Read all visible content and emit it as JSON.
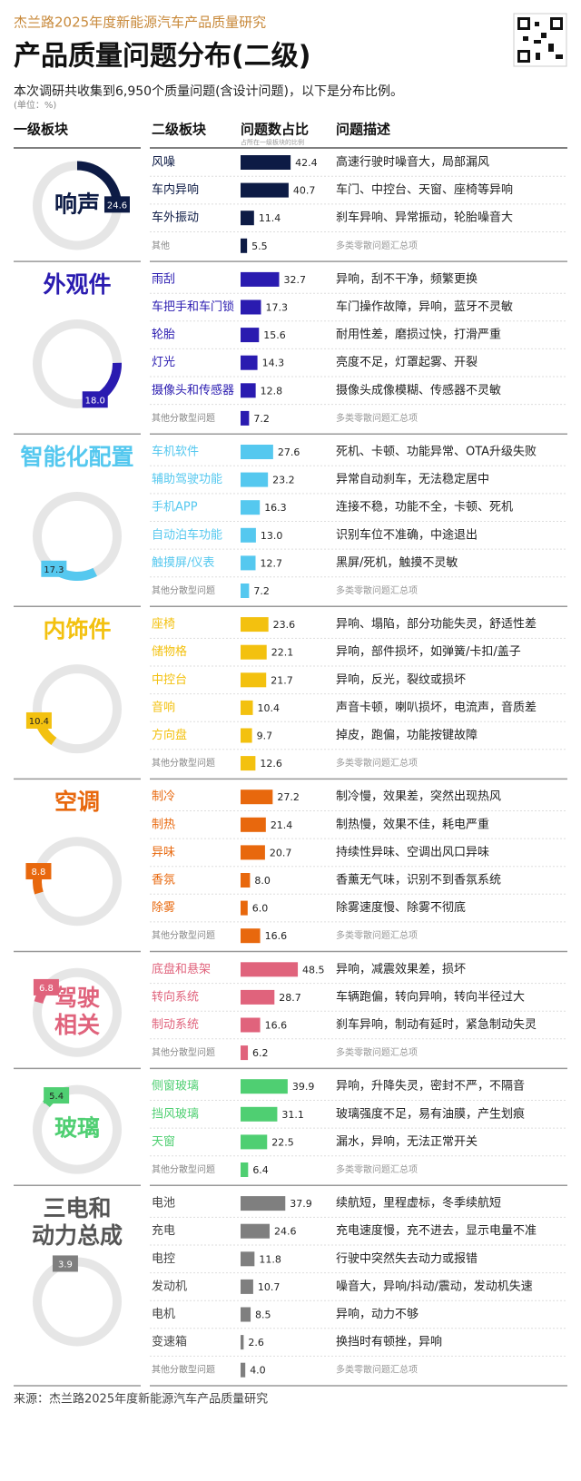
{
  "header": {
    "brand": "杰兰路2025年度新能源汽车产品质量研究",
    "title": "产品质量问题分布(二级)",
    "subtitle": "本次调研共收集到6,950个质量问题(含设计问题)，以下是分布比例。",
    "unit": "(单位：%)"
  },
  "columns": {
    "level1": "一级板块",
    "level2": "二级板块",
    "share": "问题数占比",
    "share_note": "占所在一级板块的比例",
    "desc": "问题描述"
  },
  "sections": [
    {
      "name": [
        "响声"
      ],
      "share": 24.6,
      "color": "#0d1b45",
      "rows": [
        {
          "name": "风噪",
          "value": 42.4,
          "desc": "高速行驶时噪音大，局部漏风"
        },
        {
          "name": "车内异响",
          "value": 40.7,
          "desc": "车门、中控台、天窗、座椅等异响"
        },
        {
          "name": "车外振动",
          "value": 11.4,
          "desc": "刹车异响、异常振动，轮胎噪音大"
        },
        {
          "name": "其他",
          "value": 5.5,
          "desc": "多类零散问题汇总项"
        }
      ]
    },
    {
      "name": [
        "外观件"
      ],
      "share": 18,
      "share_label": "18.0",
      "color": "#2a1bb0",
      "rows": [
        {
          "name": "雨刮",
          "value": 32.7,
          "desc": "异响，刮不干净，频繁更换"
        },
        {
          "name": "车把手和车门锁",
          "value": 17.3,
          "desc": "车门操作故障，异响，蓝牙不灵敏"
        },
        {
          "name": "轮胎",
          "value": 15.6,
          "desc": "耐用性差，磨损过快，打滑严重"
        },
        {
          "name": "灯光",
          "value": 14.3,
          "desc": "亮度不足，灯罩起雾、开裂"
        },
        {
          "name": "摄像头和传感器",
          "value": 12.8,
          "desc": "摄像头成像模糊、传感器不灵敏"
        },
        {
          "name": "其他分散型问题",
          "value": 7.2,
          "desc": "多类零散问题汇总项"
        }
      ]
    },
    {
      "name": [
        "智能化配置"
      ],
      "share": 17.3,
      "color": "#55c8ef",
      "rows": [
        {
          "name": "车机软件",
          "value": 27.6,
          "desc": "死机、卡顿、功能异常、OTA升级失败"
        },
        {
          "name": "辅助驾驶功能",
          "value": 23.2,
          "desc": "异常自动刹车，无法稳定居中"
        },
        {
          "name": "手机APP",
          "value": 16.3,
          "desc": "连接不稳，功能不全，卡顿、死机"
        },
        {
          "name": "自动泊车功能",
          "value": 13,
          "value_label": "13.0",
          "desc": "识别车位不准确，中途退出"
        },
        {
          "name": "触摸屏/仪表",
          "value": 12.7,
          "desc": "黑屏/死机，触摸不灵敏"
        },
        {
          "name": "其他分散型问题",
          "value": 7.2,
          "desc": "多类零散问题汇总项"
        }
      ]
    },
    {
      "name": [
        "内饰件"
      ],
      "share": 10.4,
      "color": "#f3c10f",
      "rows": [
        {
          "name": "座椅",
          "value": 23.6,
          "desc": "异响、塌陷，部分功能失灵，舒适性差"
        },
        {
          "name": "储物格",
          "value": 22.1,
          "desc": "异响，部件损坏，如弹簧/卡扣/盖子"
        },
        {
          "name": "中控台",
          "value": 21.7,
          "desc": "异响，反光，裂纹或损坏"
        },
        {
          "name": "音响",
          "value": 10.4,
          "desc": "声音卡顿，喇叭损坏，电流声，音质差"
        },
        {
          "name": "方向盘",
          "value": 9.7,
          "desc": "掉皮，跑偏，功能按键故障"
        },
        {
          "name": "其他分散型问题",
          "value": 12.6,
          "desc": "多类零散问题汇总项"
        }
      ]
    },
    {
      "name": [
        "空调"
      ],
      "share": 8.8,
      "color": "#e8680d",
      "rows": [
        {
          "name": "制冷",
          "value": 27.2,
          "desc": "制冷慢，效果差，突然出现热风"
        },
        {
          "name": "制热",
          "value": 21.4,
          "desc": "制热慢，效果不佳，耗电严重"
        },
        {
          "name": "异味",
          "value": 20.7,
          "desc": "持续性异味、空调出风口异味"
        },
        {
          "name": "香氛",
          "value": 8,
          "value_label": "8.0",
          "desc": "香薰无气味，识别不到香氛系统"
        },
        {
          "name": "除雾",
          "value": 6,
          "value_label": "6.0",
          "desc": "除雾速度慢、除雾不彻底"
        },
        {
          "name": "其他分散型问题",
          "value": 16.6,
          "desc": "多类零散问题汇总项"
        }
      ]
    },
    {
      "name": [
        "驾驶",
        "相关"
      ],
      "share": 6.8,
      "color": "#e0637c",
      "rows": [
        {
          "name": "底盘和悬架",
          "value": 48.5,
          "desc": "异响，减震效果差，损坏"
        },
        {
          "name": "转向系统",
          "value": 28.7,
          "desc": "车辆跑偏，转向异响，转向半径过大"
        },
        {
          "name": "制动系统",
          "value": 16.6,
          "desc": "刹车异响，制动有延时，紧急制动失灵"
        },
        {
          "name": "其他分散型问题",
          "value": 6.2,
          "desc": "多类零散问题汇总项"
        }
      ]
    },
    {
      "name": [
        "玻璃"
      ],
      "share": 5.4,
      "color": "#4fcf72",
      "rows": [
        {
          "name": "侧窗玻璃",
          "value": 39.9,
          "desc": "异响，升降失灵，密封不严，不隔音"
        },
        {
          "name": "挡风玻璃",
          "value": 31.1,
          "desc": "玻璃强度不足，易有油膜，产生划痕"
        },
        {
          "name": "天窗",
          "value": 22.5,
          "desc": "漏水，异响，无法正常开关"
        },
        {
          "name": "其他分散型问题",
          "value": 6.4,
          "desc": "多类零散问题汇总项"
        }
      ]
    },
    {
      "name": [
        "三电和",
        "动力总成"
      ],
      "share": 3.9,
      "color": "#7f7f7f",
      "rows": [
        {
          "name": "电池",
          "value": 37.9,
          "desc": "续航短，里程虚标，冬季续航短"
        },
        {
          "name": "充电",
          "value": 24.6,
          "desc": "充电速度慢，充不进去，显示电量不准"
        },
        {
          "name": "电控",
          "value": 11.8,
          "desc": "行驶中突然失去动力或报错"
        },
        {
          "name": "发动机",
          "value": 10.7,
          "desc": "噪音大，异响/抖动/震动，发动机失速"
        },
        {
          "name": "电机",
          "value": 8.5,
          "desc": "异响，动力不够"
        },
        {
          "name": "变速箱",
          "value": 2.6,
          "desc": "换挡时有顿挫，异响"
        },
        {
          "name": "其他分散型问题",
          "value": 4,
          "value_label": "4.0",
          "desc": "多类零散问题汇总项"
        }
      ]
    }
  ],
  "footer": "来源：杰兰路2025年度新能源汽车产品质量研究"
}
